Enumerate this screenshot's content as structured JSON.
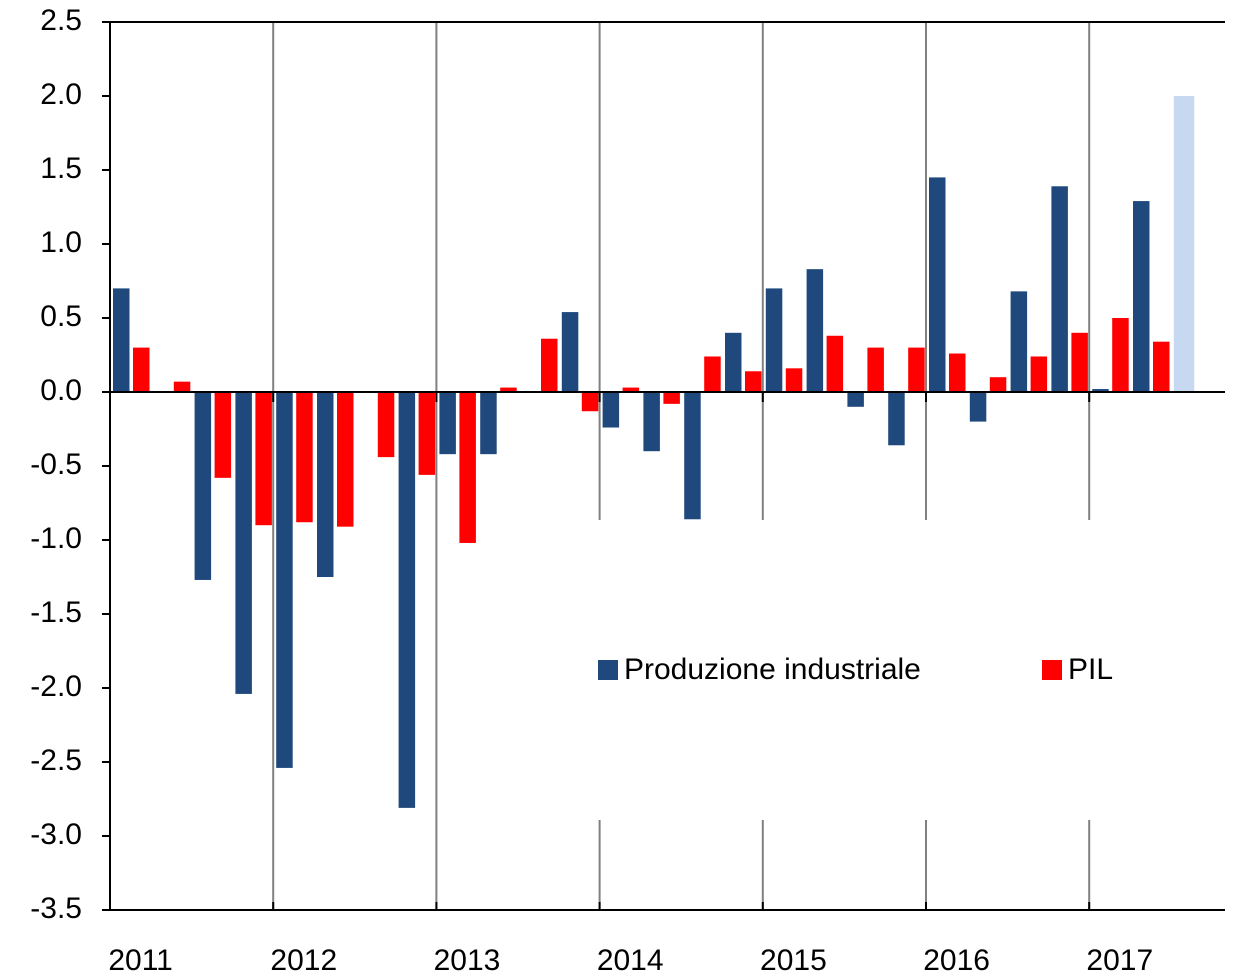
{
  "chart_data": {
    "type": "bar",
    "categories": [
      "2011",
      null,
      null,
      null,
      "2012",
      null,
      null,
      null,
      "2013",
      null,
      null,
      null,
      "2014",
      null,
      null,
      null,
      "2015",
      null,
      null,
      null,
      "2016",
      null,
      null,
      null,
      "2017",
      null,
      null
    ],
    "series": [
      {
        "name": "Produzione industriale",
        "color": "#1f497d",
        "colors": [
          "#1f497d",
          "#1f497d",
          "#1f497d",
          "#1f497d",
          "#1f497d",
          "#1f497d",
          "#1f497d",
          "#1f497d",
          "#1f497d",
          "#1f497d",
          "#1f497d",
          "#1f497d",
          "#1f497d",
          "#1f497d",
          "#1f497d",
          "#1f497d",
          "#1f497d",
          "#1f497d",
          "#1f497d",
          "#1f497d",
          "#1f497d",
          "#1f497d",
          "#1f497d",
          "#1f497d",
          "#1f497d",
          "#1f497d",
          "#c6d9f1"
        ],
        "values": [
          0.7,
          0,
          -1.27,
          -2.04,
          -2.54,
          -1.25,
          0,
          -2.81,
          -0.42,
          -0.42,
          0,
          0.54,
          -0.24,
          -0.4,
          -0.86,
          0.4,
          0.7,
          0.83,
          -0.1,
          -0.36,
          1.45,
          -0.2,
          0.68,
          1.39,
          0.02,
          1.29,
          2.0
        ]
      },
      {
        "name": "PIL",
        "color": "#ff0000",
        "values": [
          0.3,
          0.07,
          -0.58,
          -0.9,
          -0.88,
          -0.91,
          -0.44,
          -0.56,
          -1.02,
          0.03,
          0.36,
          -0.13,
          0.03,
          -0.08,
          0.24,
          0.14,
          0.16,
          0.38,
          0.3,
          0.3,
          0.26,
          0.1,
          0.24,
          0.4,
          0.5,
          0.34,
          null
        ]
      }
    ],
    "ylim": [
      -3.5,
      2.5
    ],
    "yticks": [
      2.5,
      {
        "value": 2.0,
        "label": "2.0"
      },
      1.5,
      {
        "value": 1.0,
        "label": "1.0"
      },
      0.5,
      {
        "value": 0.0,
        "label": "0.0"
      },
      -0.5,
      {
        "value": -1.0,
        "label": "-1.0"
      },
      -1.5,
      {
        "value": -2.0,
        "label": "-2.0"
      },
      -2.5,
      {
        "value": -3.0,
        "label": "-3.0"
      },
      -3.5
    ],
    "year_grid": true,
    "legend": "lower right"
  }
}
